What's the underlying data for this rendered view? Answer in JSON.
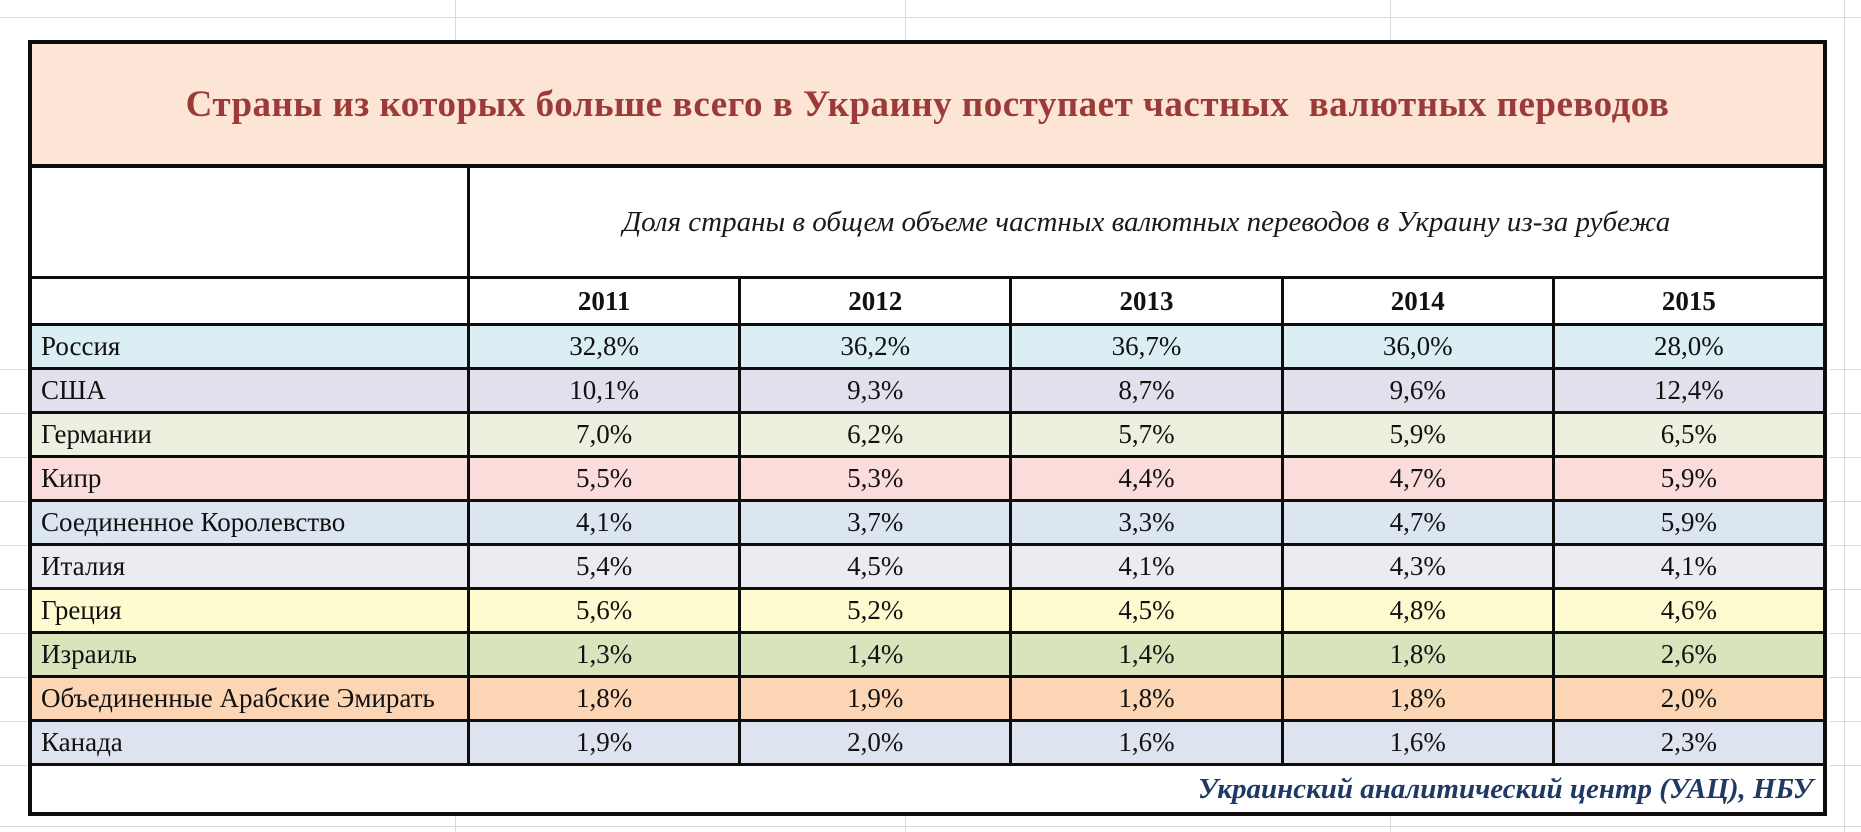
{
  "table": {
    "title": "Страны из которых больше всего в Украину поступает частных  валютных переводов",
    "subtitle": "Доля страны в общем объеме частных валютных переводов в Украину из-за рубежа",
    "source": "Украинский аналитический центр (УАЦ), НБУ",
    "years": [
      "2011",
      "2012",
      "2013",
      "2014",
      "2015"
    ],
    "rows": [
      {
        "country": "Россия",
        "values": [
          "32,8%",
          "36,2%",
          "36,7%",
          "36,0%",
          "28,0%"
        ],
        "color": "#daeef3"
      },
      {
        "country": "США",
        "values": [
          "10,1%",
          "9,3%",
          "8,7%",
          "9,6%",
          "12,4%"
        ],
        "color": "#e4dfec"
      },
      {
        "country": "Германии",
        "values": [
          "7,0%",
          "6,2%",
          "5,7%",
          "5,9%",
          "6,5%"
        ],
        "color": "#ebf1de"
      },
      {
        "country": "Кипр",
        "values": [
          "5,5%",
          "5,3%",
          "4,4%",
          "4,7%",
          "5,9%"
        ],
        "color": "#fadcda"
      },
      {
        "country": "Соединенное Королевство",
        "values": [
          "4,1%",
          "3,7%",
          "3,3%",
          "4,7%",
          "5,9%"
        ],
        "color": "#dce6f1"
      },
      {
        "country": "Италия",
        "values": [
          "5,4%",
          "4,5%",
          "4,1%",
          "4,3%",
          "4,1%"
        ],
        "color": "#ebebf2"
      },
      {
        "country": "Греция",
        "values": [
          "5,6%",
          "5,2%",
          "4,5%",
          "4,8%",
          "4,6%"
        ],
        "color": "#fdfbcf"
      },
      {
        "country": "Израиль",
        "values": [
          "1,3%",
          "1,4%",
          "1,4%",
          "1,8%",
          "2,6%"
        ],
        "color": "#d8e4bc"
      },
      {
        "country": "Объединенные Арабские Эмирать",
        "values": [
          "1,8%",
          "1,9%",
          "1,8%",
          "1,8%",
          "2,0%"
        ],
        "color": "#fcd5b4"
      },
      {
        "country": "Канада",
        "values": [
          "1,9%",
          "2,0%",
          "1,6%",
          "1,6%",
          "2,3%"
        ],
        "color": "#dde4f0"
      }
    ],
    "colors": {
      "title_bg": "#fce5d5",
      "title_text": "#9c3a38",
      "source_text": "#1f3864",
      "border": "#0d0d0d"
    }
  },
  "chart_data": {
    "type": "table",
    "title": "Страны из которых больше всего в Украину поступает частных  валютных переводов",
    "subtitle": "Доля страны в общем объеме частных валютных переводов в Украину из-за рубежа",
    "source": "Украинский аналитический центр (УАЦ), НБУ",
    "unit": "percent",
    "categories": [
      "2011",
      "2012",
      "2013",
      "2014",
      "2015"
    ],
    "series": [
      {
        "name": "Россия",
        "values": [
          32.8,
          36.2,
          36.7,
          36.0,
          28.0
        ]
      },
      {
        "name": "США",
        "values": [
          10.1,
          9.3,
          8.7,
          9.6,
          12.4
        ]
      },
      {
        "name": "Германии",
        "values": [
          7.0,
          6.2,
          5.7,
          5.9,
          6.5
        ]
      },
      {
        "name": "Кипр",
        "values": [
          5.5,
          5.3,
          4.4,
          4.7,
          5.9
        ]
      },
      {
        "name": "Соединенное Королевство",
        "values": [
          4.1,
          3.7,
          3.3,
          4.7,
          5.9
        ]
      },
      {
        "name": "Италия",
        "values": [
          5.4,
          4.5,
          4.1,
          4.3,
          4.1
        ]
      },
      {
        "name": "Греция",
        "values": [
          5.6,
          5.2,
          4.5,
          4.8,
          4.6
        ]
      },
      {
        "name": "Израиль",
        "values": [
          1.3,
          1.4,
          1.4,
          1.8,
          2.6
        ]
      },
      {
        "name": "Объединенные Арабские Эмирать",
        "values": [
          1.8,
          1.9,
          1.8,
          1.8,
          2.0
        ]
      },
      {
        "name": "Канада",
        "values": [
          1.9,
          2.0,
          1.6,
          1.6,
          2.3
        ]
      }
    ]
  }
}
